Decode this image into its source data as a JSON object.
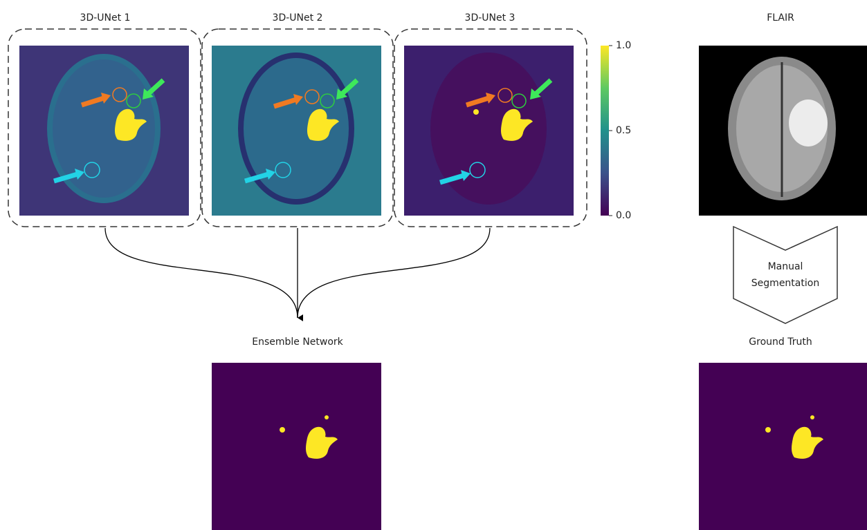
{
  "panels": [
    {
      "title": "3D-UNet 1"
    },
    {
      "title": "3D-UNet 2"
    },
    {
      "title": "3D-UNet 3"
    }
  ],
  "colorbar": {
    "range": [
      0,
      1
    ],
    "ticks": [
      {
        "value": 1,
        "label": "1.0"
      },
      {
        "value": 0.5,
        "label": "0.5"
      },
      {
        "value": 0,
        "label": "0.0"
      }
    ]
  },
  "flair": {
    "title": "FLAIR"
  },
  "manual_segmentation": {
    "lines": [
      "Manual",
      "Segmentation"
    ]
  },
  "ensemble": {
    "title": "Ensemble Network"
  },
  "ground_truth": {
    "title": "Ground Truth"
  }
}
